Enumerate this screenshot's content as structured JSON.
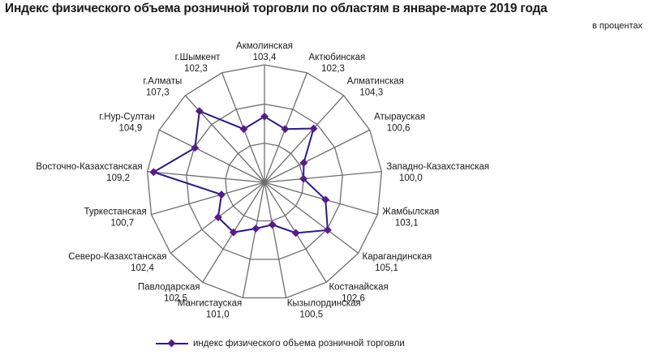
{
  "header": {
    "title": "Индекс физического объема розничной торговли по областям в январе-марте 2019 года",
    "units": "в процентах"
  },
  "legend": {
    "label": "индекс физического объема розничной торговли"
  },
  "colors": {
    "series": "#2a1a8c",
    "marker": "#5a1a8c",
    "grid": "#6e6e6e"
  },
  "chart_data": {
    "type": "radar",
    "title": "Индекс физического объема розничной торговли по областям в январе-марте 2019 года",
    "subtitle": "в процентах",
    "categories": [
      "Акмолинская",
      "Актюбинская",
      "Алматинская",
      "Атырауская",
      "Западно-Казахстанская",
      "Жамбылская",
      "Карагандинская",
      "Костанайская",
      "Кызылординская",
      "Мангистауская",
      "Павлодарская",
      "Северо-Казахстанская",
      "Туркестанская",
      "Восточно-Казахстанская",
      "г.Нур-Султан",
      "г.Алматы",
      "г.Шымкент"
    ],
    "series": [
      {
        "name": "индекс физического объема розничной торговли",
        "values": [
          103.4,
          102.3,
          104.3,
          100.6,
          100.0,
          103.1,
          105.1,
          102.6,
          100.5,
          101.0,
          102.5,
          102.4,
          100.7,
          109.2,
          104.9,
          107.3,
          102.3
        ]
      }
    ],
    "value_labels": [
      "103,4",
      "102,3",
      "104,3",
      "100,6",
      "100,0",
      "103,1",
      "105,1",
      "102,6",
      "100,5",
      "101,0",
      "102,5",
      "102,4",
      "100,7",
      "109,2",
      "104,9",
      "107,3",
      "102,3"
    ],
    "rlim": [
      95,
      110
    ],
    "ring_ticks": [
      100,
      105,
      110
    ],
    "grid": true,
    "legend_position": "bottom"
  }
}
